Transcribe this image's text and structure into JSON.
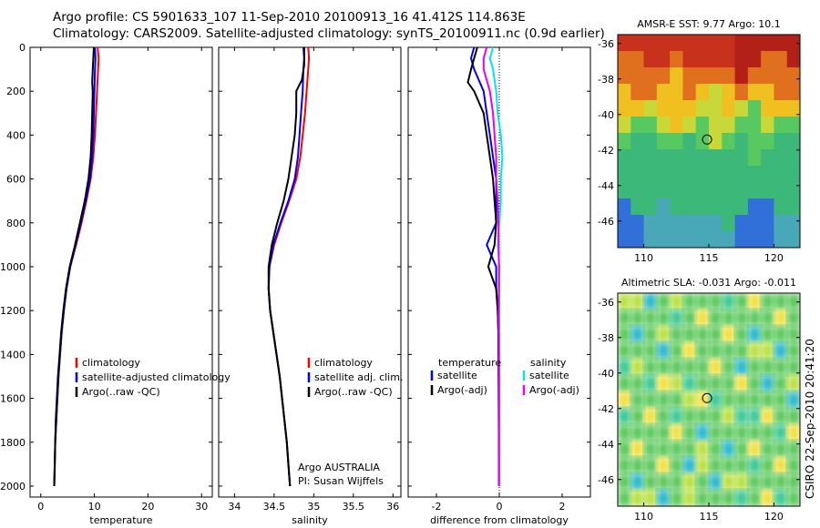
{
  "header": {
    "line1": "Argo profile: CS 5901633_107 11-Sep-2010 20100913_16 41.412S 114.863E",
    "line2": "Climatology: CARS2009. Satellite-adjusted climatology: synTS_20100911.nc (0.9d earlier)"
  },
  "colors": {
    "climatology": "#ff0000",
    "satellite": "#0000ff",
    "argo": "#000000",
    "sal_satellite": "#00e5ee",
    "sal_argo": "#ee00ee"
  },
  "chart_data": [
    {
      "id": "temperature",
      "type": "line",
      "xlabel": "temperature",
      "xlim": [
        -2,
        32
      ],
      "xticks": [
        0,
        10,
        20,
        30
      ],
      "ylim": [
        0,
        2050
      ],
      "yticks": [
        0,
        200,
        400,
        600,
        800,
        1000,
        1200,
        1400,
        1600,
        1800,
        2000
      ],
      "legend": [
        "climatology",
        "satellite-adjusted climatology",
        "Argo(..raw -QC)"
      ],
      "series": [
        {
          "name": "climatology",
          "color_key": "climatology",
          "points": [
            [
              10.6,
              0
            ],
            [
              10.8,
              50
            ],
            [
              10.7,
              100
            ],
            [
              10.5,
              200
            ],
            [
              10.3,
              300
            ],
            [
              10.1,
              400
            ],
            [
              9.8,
              500
            ],
            [
              9.3,
              600
            ],
            [
              8.5,
              700
            ],
            [
              7.6,
              800
            ],
            [
              6.6,
              900
            ],
            [
              5.5,
              1000
            ],
            [
              4.8,
              1100
            ],
            [
              4.3,
              1200
            ],
            [
              3.9,
              1300
            ],
            [
              3.6,
              1400
            ],
            [
              3.3,
              1500
            ],
            [
              3.1,
              1600
            ],
            [
              2.9,
              1700
            ],
            [
              2.7,
              1800
            ],
            [
              2.6,
              1900
            ],
            [
              2.5,
              2000
            ]
          ]
        },
        {
          "name": "satellite-adjusted climatology",
          "color_key": "satellite",
          "points": [
            [
              10.1,
              0
            ],
            [
              10.2,
              50
            ],
            [
              10.1,
              100
            ],
            [
              10.0,
              200
            ],
            [
              9.9,
              300
            ],
            [
              9.8,
              400
            ],
            [
              9.6,
              500
            ],
            [
              9.2,
              600
            ],
            [
              8.4,
              700
            ],
            [
              7.5,
              800
            ],
            [
              6.5,
              900
            ],
            [
              5.5,
              1000
            ],
            [
              4.8,
              1100
            ],
            [
              4.3,
              1200
            ],
            [
              3.9,
              1300
            ],
            [
              3.6,
              1400
            ],
            [
              3.3,
              1500
            ],
            [
              3.1,
              1600
            ],
            [
              2.9,
              1700
            ],
            [
              2.7,
              1800
            ],
            [
              2.6,
              1900
            ],
            [
              2.5,
              2000
            ]
          ]
        },
        {
          "name": "Argo(..raw -QC)",
          "color_key": "argo",
          "points": [
            [
              9.9,
              0
            ],
            [
              9.8,
              50
            ],
            [
              9.7,
              100
            ],
            [
              9.6,
              160
            ],
            [
              9.7,
              200
            ],
            [
              9.6,
              300
            ],
            [
              9.5,
              400
            ],
            [
              9.3,
              500
            ],
            [
              8.9,
              600
            ],
            [
              8.2,
              700
            ],
            [
              7.3,
              800
            ],
            [
              6.4,
              900
            ],
            [
              5.4,
              1000
            ],
            [
              4.7,
              1100
            ],
            [
              4.2,
              1200
            ],
            [
              3.8,
              1300
            ],
            [
              3.5,
              1400
            ],
            [
              3.2,
              1500
            ],
            [
              3.0,
              1600
            ],
            [
              2.8,
              1700
            ],
            [
              2.7,
              1800
            ],
            [
              2.6,
              1900
            ],
            [
              2.5,
              2000
            ]
          ]
        }
      ]
    },
    {
      "id": "salinity",
      "type": "line",
      "xlabel": "salinity",
      "xlim": [
        33.8,
        36.1
      ],
      "xticks": [
        34,
        34.5,
        35,
        35.5,
        36
      ],
      "ylim": [
        0,
        2050
      ],
      "legend": [
        "climatology",
        "satellite adj. clim.",
        "Argo(..raw -QC)"
      ],
      "annotation": [
        "Argo AUSTRALIA",
        "PI: Susan Wijffels"
      ],
      "series": [
        {
          "name": "climatology",
          "color_key": "climatology",
          "points": [
            [
              34.93,
              0
            ],
            [
              34.94,
              50
            ],
            [
              34.93,
              100
            ],
            [
              34.91,
              200
            ],
            [
              34.89,
              300
            ],
            [
              34.86,
              400
            ],
            [
              34.83,
              500
            ],
            [
              34.78,
              600
            ],
            [
              34.69,
              700
            ],
            [
              34.59,
              800
            ],
            [
              34.5,
              900
            ],
            [
              34.44,
              1000
            ],
            [
              34.43,
              1100
            ],
            [
              34.45,
              1200
            ],
            [
              34.49,
              1300
            ],
            [
              34.53,
              1400
            ],
            [
              34.57,
              1500
            ],
            [
              34.6,
              1600
            ],
            [
              34.63,
              1700
            ],
            [
              34.66,
              1800
            ],
            [
              34.68,
              1900
            ],
            [
              34.7,
              2000
            ]
          ]
        },
        {
          "name": "satellite adj. clim.",
          "color_key": "satellite",
          "points": [
            [
              34.87,
              0
            ],
            [
              34.88,
              50
            ],
            [
              34.87,
              100
            ],
            [
              34.86,
              200
            ],
            [
              34.84,
              300
            ],
            [
              34.82,
              400
            ],
            [
              34.8,
              500
            ],
            [
              34.76,
              600
            ],
            [
              34.68,
              700
            ],
            [
              34.58,
              800
            ],
            [
              34.49,
              900
            ],
            [
              34.44,
              1000
            ],
            [
              34.43,
              1100
            ],
            [
              34.45,
              1200
            ],
            [
              34.49,
              1300
            ],
            [
              34.53,
              1400
            ],
            [
              34.57,
              1500
            ],
            [
              34.6,
              1600
            ],
            [
              34.63,
              1700
            ],
            [
              34.66,
              1800
            ],
            [
              34.68,
              1900
            ],
            [
              34.7,
              2000
            ]
          ]
        },
        {
          "name": "Argo(..raw -QC)",
          "color_key": "argo",
          "points": [
            [
              34.88,
              0
            ],
            [
              34.88,
              80
            ],
            [
              34.85,
              150
            ],
            [
              34.82,
              170
            ],
            [
              34.78,
              200
            ],
            [
              34.78,
              300
            ],
            [
              34.76,
              400
            ],
            [
              34.72,
              500
            ],
            [
              34.68,
              600
            ],
            [
              34.62,
              700
            ],
            [
              34.54,
              800
            ],
            [
              34.47,
              900
            ],
            [
              34.43,
              1000
            ],
            [
              34.43,
              1100
            ],
            [
              34.45,
              1200
            ],
            [
              34.49,
              1300
            ],
            [
              34.53,
              1400
            ],
            [
              34.57,
              1500
            ],
            [
              34.6,
              1600
            ],
            [
              34.63,
              1700
            ],
            [
              34.66,
              1800
            ],
            [
              34.68,
              1900
            ],
            [
              34.7,
              2000
            ]
          ]
        }
      ]
    },
    {
      "id": "difference",
      "type": "line",
      "xlabel": "difference from climatology",
      "xlim": [
        -2.9,
        2.9
      ],
      "xticks": [
        -2,
        0,
        2
      ],
      "ylim": [
        0,
        2050
      ],
      "legend_groups": [
        {
          "title": "temperature",
          "items": [
            "satellite",
            "Argo(-adj)"
          ]
        },
        {
          "title": "salinity",
          "items": [
            "satellite",
            "Argo(-adj)"
          ]
        }
      ],
      "series": [
        {
          "name": "temperature satellite",
          "color_key": "satellite",
          "points": [
            [
              -0.8,
              0
            ],
            [
              -0.9,
              50
            ],
            [
              -0.8,
              100
            ],
            [
              -0.5,
              200
            ],
            [
              -0.4,
              300
            ],
            [
              -0.3,
              400
            ],
            [
              -0.2,
              500
            ],
            [
              -0.1,
              600
            ],
            [
              -0.1,
              700
            ],
            [
              -0.1,
              800
            ],
            [
              -0.4,
              900
            ],
            [
              -0.1,
              1000
            ],
            [
              -0.1,
              1100
            ],
            [
              -0.05,
              1200
            ],
            [
              -0.03,
              1300
            ],
            [
              -0.02,
              1500
            ],
            [
              -0.01,
              2000
            ]
          ]
        },
        {
          "name": "temperature Argo(-adj)",
          "color_key": "argo",
          "points": [
            [
              -0.7,
              0
            ],
            [
              -0.8,
              50
            ],
            [
              -0.9,
              100
            ],
            [
              -1.0,
              160
            ],
            [
              -0.8,
              200
            ],
            [
              -0.5,
              300
            ],
            [
              -0.4,
              400
            ],
            [
              -0.3,
              500
            ],
            [
              -0.2,
              600
            ],
            [
              -0.15,
              700
            ],
            [
              -0.1,
              800
            ],
            [
              -0.15,
              900
            ],
            [
              -0.35,
              1000
            ],
            [
              -0.1,
              1100
            ],
            [
              -0.05,
              1200
            ],
            [
              -0.03,
              1300
            ],
            [
              -0.02,
              1500
            ],
            [
              -0.01,
              2000
            ]
          ]
        },
        {
          "name": "salinity satellite",
          "color_key": "sal_satellite",
          "points": [
            [
              -0.2,
              0
            ],
            [
              -0.3,
              50
            ],
            [
              -0.2,
              100
            ],
            [
              -0.1,
              200
            ],
            [
              -0.05,
              300
            ],
            [
              0.05,
              400
            ],
            [
              0.1,
              500
            ],
            [
              0.05,
              600
            ],
            [
              0.05,
              700
            ],
            [
              0.0,
              800
            ],
            [
              -0.05,
              900
            ],
            [
              0.0,
              1000
            ],
            [
              0.0,
              1200
            ],
            [
              0.0,
              1500
            ],
            [
              0.0,
              2000
            ]
          ]
        },
        {
          "name": "salinity Argo(-adj)",
          "color_key": "sal_argo",
          "points": [
            [
              -0.4,
              0
            ],
            [
              -0.5,
              50
            ],
            [
              -0.5,
              100
            ],
            [
              -0.3,
              200
            ],
            [
              -0.2,
              300
            ],
            [
              -0.15,
              400
            ],
            [
              -0.1,
              500
            ],
            [
              -0.1,
              600
            ],
            [
              -0.05,
              700
            ],
            [
              -0.03,
              800
            ],
            [
              -0.02,
              900
            ],
            [
              -0.01,
              1000
            ],
            [
              -0.02,
              1200
            ],
            [
              -0.01,
              1500
            ],
            [
              -0.01,
              2000
            ]
          ]
        }
      ]
    },
    {
      "id": "sst_map",
      "type": "heatmap",
      "title": "AMSR-E SST: 9.77 Argo: 10.1",
      "xlim": [
        108,
        122
      ],
      "ylim": [
        -47.5,
        -35.5
      ],
      "xticks": [
        110,
        115,
        120
      ],
      "yticks": [
        -36,
        -38,
        -40,
        -42,
        -44,
        -46
      ],
      "float_position": [
        114.863,
        -41.412
      ]
    },
    {
      "id": "sla_map",
      "type": "heatmap",
      "title": "Altimetric SLA: -0.031 Argo: -0.011",
      "xlim": [
        108,
        122
      ],
      "ylim": [
        -47.5,
        -35.5
      ],
      "xticks": [
        110,
        115,
        120
      ],
      "yticks": [
        -36,
        -38,
        -40,
        -42,
        -44,
        -46
      ],
      "float_position": [
        114.863,
        -41.412
      ]
    }
  ],
  "credit": "CSIRO 22-Sep-2010 20:41:20"
}
